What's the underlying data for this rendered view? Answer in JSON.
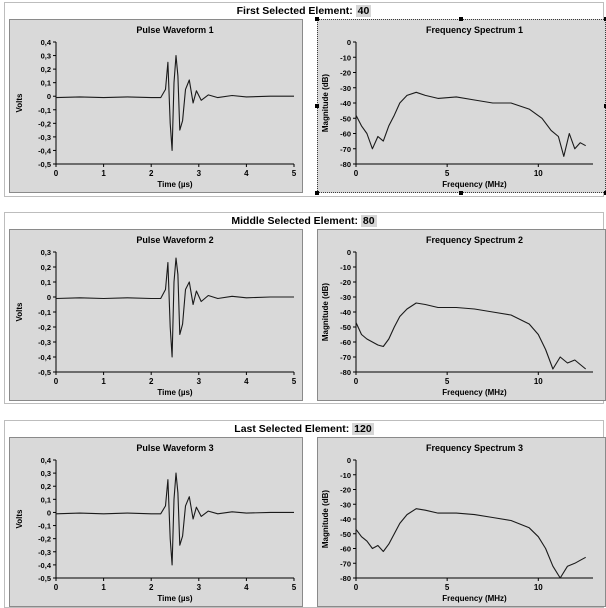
{
  "sections": [
    {
      "title_prefix": "First Selected Element:",
      "element_number": "40",
      "charts": [
        {
          "type": "line",
          "title": "Pulse Waveform 1",
          "xlabel": "Time (µs)",
          "ylabel": "Volts",
          "xlim": [
            0,
            5
          ],
          "ylim": [
            -0.5,
            0.4
          ],
          "xticks": [
            0,
            1,
            2,
            3,
            4,
            5
          ],
          "yticks": [
            0.4,
            0.3,
            0.2,
            0.1,
            0,
            -0.1,
            -0.2,
            -0.3,
            -0.4,
            -0.5
          ],
          "ytick_labels": [
            "0,4",
            "0,3",
            "0,2",
            "0,1",
            "0",
            "-0,1",
            "-0,2",
            "-0,3",
            "-0,4",
            "-0,5"
          ],
          "x": [
            0,
            0.5,
            1,
            1.5,
            2,
            2.2,
            2.3,
            2.35,
            2.4,
            2.44,
            2.48,
            2.52,
            2.56,
            2.6,
            2.66,
            2.72,
            2.8,
            2.88,
            2.95,
            3.05,
            3.2,
            3.4,
            3.7,
            4,
            4.5,
            5
          ],
          "y": [
            -0.01,
            -0.005,
            -0.01,
            -0.005,
            -0.01,
            -0.01,
            0.05,
            0.25,
            -0.2,
            -0.4,
            0.1,
            0.3,
            0.15,
            -0.25,
            -0.18,
            0.05,
            0.12,
            -0.05,
            0.04,
            -0.03,
            0.01,
            -0.01,
            0.005,
            -0.005,
            0,
            0
          ]
        },
        {
          "type": "line",
          "title": "Frequency Spectrum 1",
          "xlabel": "Frequency (MHz)",
          "ylabel": "Magnitude (dB)",
          "xlim": [
            0,
            13
          ],
          "ylim": [
            -80,
            0
          ],
          "xticks": [
            0,
            5,
            10
          ],
          "yticks": [
            0,
            -10,
            -20,
            -30,
            -40,
            -50,
            -60,
            -70,
            -80
          ],
          "x": [
            0,
            0.3,
            0.6,
            0.9,
            1.2,
            1.5,
            1.8,
            2.1,
            2.4,
            2.8,
            3.3,
            3.8,
            4.5,
            5.5,
            6.5,
            7.5,
            8.5,
            9.5,
            10.2,
            10.7,
            11.1,
            11.4,
            11.7,
            12.0,
            12.3,
            12.6
          ],
          "y": [
            -48,
            -55,
            -60,
            -70,
            -62,
            -65,
            -55,
            -48,
            -40,
            -35,
            -33,
            -35,
            -37,
            -36,
            -38,
            -40,
            -40,
            -44,
            -50,
            -58,
            -62,
            -75,
            -60,
            -70,
            -66,
            -68
          ]
        }
      ]
    },
    {
      "title_prefix": "Middle Selected Element:",
      "element_number": "80",
      "charts": [
        {
          "type": "line",
          "title": "Pulse Waveform 2",
          "xlabel": "Time (µs)",
          "ylabel": "Volts",
          "xlim": [
            0,
            5
          ],
          "ylim": [
            -0.5,
            0.3
          ],
          "xticks": [
            0,
            1,
            2,
            3,
            4,
            5
          ],
          "yticks": [
            0.3,
            0.2,
            0.1,
            0,
            -0.1,
            -0.2,
            -0.3,
            -0.4,
            -0.5
          ],
          "ytick_labels": [
            "0,3",
            "0,2",
            "0,1",
            "0",
            "-0,1",
            "-0,2",
            "-0,3",
            "-0,4",
            "-0,5"
          ],
          "x": [
            0,
            0.5,
            1,
            1.5,
            2,
            2.2,
            2.3,
            2.35,
            2.4,
            2.44,
            2.48,
            2.52,
            2.56,
            2.6,
            2.66,
            2.72,
            2.8,
            2.88,
            2.95,
            3.05,
            3.2,
            3.4,
            3.7,
            4,
            4.5,
            5
          ],
          "y": [
            -0.01,
            -0.005,
            -0.01,
            -0.005,
            -0.01,
            -0.01,
            0.05,
            0.23,
            -0.2,
            -0.4,
            0.1,
            0.26,
            0.15,
            -0.25,
            -0.18,
            0.05,
            0.1,
            -0.05,
            0.04,
            -0.03,
            0.01,
            -0.01,
            0.005,
            -0.005,
            0,
            0
          ]
        },
        {
          "type": "line",
          "title": "Frequency Spectrum 2",
          "xlabel": "Frequency (MHz)",
          "ylabel": "Magnitude (dB)",
          "xlim": [
            0,
            13
          ],
          "ylim": [
            -80,
            0
          ],
          "xticks": [
            0,
            5,
            10
          ],
          "yticks": [
            0,
            -10,
            -20,
            -30,
            -40,
            -50,
            -60,
            -70,
            -80
          ],
          "x": [
            0,
            0.3,
            0.6,
            0.9,
            1.2,
            1.5,
            1.8,
            2.1,
            2.4,
            2.8,
            3.3,
            3.8,
            4.5,
            5.5,
            6.5,
            7.5,
            8.5,
            9.5,
            10.0,
            10.4,
            10.8,
            11.2,
            11.6,
            12.0,
            12.3,
            12.6
          ],
          "y": [
            -47,
            -55,
            -58,
            -60,
            -62,
            -63,
            -58,
            -50,
            -43,
            -38,
            -34,
            -35,
            -37,
            -37,
            -38,
            -40,
            -42,
            -48,
            -55,
            -65,
            -78,
            -70,
            -74,
            -72,
            -75,
            -78
          ]
        }
      ]
    },
    {
      "title_prefix": "Last Selected Element:",
      "element_number": "120",
      "charts": [
        {
          "type": "line",
          "title": "Pulse Waveform 3",
          "xlabel": "Time (µs)",
          "ylabel": "Volts",
          "xlim": [
            0,
            5
          ],
          "ylim": [
            -0.5,
            0.4
          ],
          "xticks": [
            0,
            1,
            2,
            3,
            4,
            5
          ],
          "yticks": [
            0.4,
            0.3,
            0.2,
            0.1,
            0,
            -0.1,
            -0.2,
            -0.3,
            -0.4,
            -0.5
          ],
          "ytick_labels": [
            "0,4",
            "0,3",
            "0,2",
            "0,1",
            "0",
            "-0,1",
            "-0,2",
            "-0,3",
            "-0,4",
            "-0,5"
          ],
          "x": [
            0,
            0.5,
            1,
            1.5,
            2,
            2.2,
            2.3,
            2.35,
            2.4,
            2.44,
            2.48,
            2.52,
            2.56,
            2.6,
            2.66,
            2.72,
            2.8,
            2.88,
            2.95,
            3.05,
            3.2,
            3.4,
            3.7,
            4,
            4.5,
            5
          ],
          "y": [
            -0.01,
            -0.005,
            -0.01,
            -0.005,
            -0.01,
            -0.01,
            0.05,
            0.25,
            -0.2,
            -0.4,
            0.1,
            0.3,
            0.15,
            -0.25,
            -0.18,
            0.05,
            0.12,
            -0.05,
            0.04,
            -0.03,
            0.01,
            -0.01,
            0.005,
            -0.005,
            0,
            0
          ]
        },
        {
          "type": "line",
          "title": "Frequency Spectrum 3",
          "xlabel": "Frequency (MHz)",
          "ylabel": "Magnitude (dB)",
          "xlim": [
            0,
            13
          ],
          "ylim": [
            -80,
            0
          ],
          "xticks": [
            0,
            5,
            10
          ],
          "yticks": [
            0,
            -10,
            -20,
            -30,
            -40,
            -50,
            -60,
            -70,
            -80
          ],
          "x": [
            0,
            0.3,
            0.6,
            0.9,
            1.2,
            1.5,
            1.8,
            2.1,
            2.4,
            2.8,
            3.3,
            3.8,
            4.5,
            5.5,
            6.5,
            7.5,
            8.5,
            9.5,
            10.0,
            10.4,
            10.8,
            11.2,
            11.6,
            12.0,
            12.3,
            12.6
          ],
          "y": [
            -47,
            -52,
            -55,
            -60,
            -58,
            -62,
            -57,
            -50,
            -43,
            -37,
            -33,
            -34,
            -36,
            -36,
            -37,
            -39,
            -41,
            -46,
            -52,
            -60,
            -72,
            -80,
            -72,
            -70,
            -68,
            -66
          ]
        }
      ]
    }
  ]
}
